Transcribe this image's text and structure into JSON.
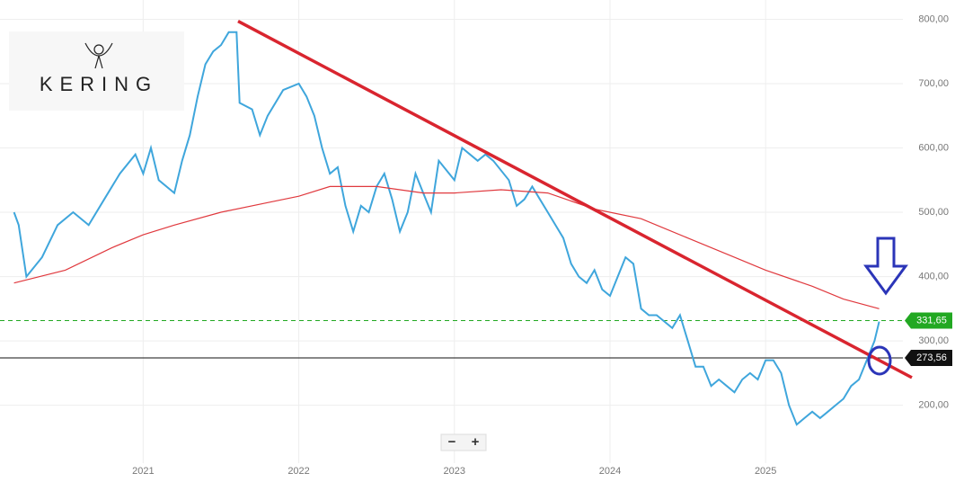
{
  "chart_data": {
    "type": "line",
    "logo": "KERING",
    "zoom_controls": [
      "−",
      "+"
    ],
    "xlim": [
      2020.08,
      2025.94
    ],
    "xticks": [
      2021,
      2022,
      2023,
      2024,
      2025
    ],
    "ylim": [
      110,
      830
    ],
    "yticks": [
      {
        "value": 200,
        "label": "200,00"
      },
      {
        "value": 300,
        "label": "300,00"
      },
      {
        "value": 400,
        "label": "400,00"
      },
      {
        "value": 500,
        "label": "500,00"
      },
      {
        "value": 600,
        "label": "600,00"
      },
      {
        "value": 700,
        "label": "700,00"
      },
      {
        "value": 800,
        "label": "800,00"
      }
    ],
    "grid": true,
    "series": [
      {
        "color": "#3fa6dc",
        "x": [
          2020.17,
          2020.2,
          2020.25,
          2020.35,
          2020.45,
          2020.55,
          2020.65,
          2020.75,
          2020.85,
          2020.95,
          2021.0,
          2021.05,
          2021.1,
          2021.2,
          2021.25,
          2021.3,
          2021.35,
          2021.4,
          2021.45,
          2021.5,
          2021.55,
          2021.6,
          2021.62,
          2021.7,
          2021.75,
          2021.8,
          2021.9,
          2022.0,
          2022.05,
          2022.1,
          2022.15,
          2022.2,
          2022.25,
          2022.3,
          2022.35,
          2022.4,
          2022.45,
          2022.5,
          2022.55,
          2022.6,
          2022.65,
          2022.7,
          2022.75,
          2022.8,
          2022.85,
          2022.9,
          2023.0,
          2023.05,
          2023.1,
          2023.15,
          2023.2,
          2023.25,
          2023.35,
          2023.4,
          2023.45,
          2023.5,
          2023.55,
          2023.6,
          2023.7,
          2023.75,
          2023.8,
          2023.85,
          2023.9,
          2023.95,
          2024.0,
          2024.05,
          2024.1,
          2024.15,
          2024.2,
          2024.25,
          2024.3,
          2024.35,
          2024.4,
          2024.45,
          2024.5,
          2024.55,
          2024.6,
          2024.65,
          2024.7,
          2024.75,
          2024.8,
          2024.85,
          2024.9,
          2024.95,
          2025.0,
          2025.05,
          2025.1,
          2025.15,
          2025.2,
          2025.25,
          2025.3,
          2025.35,
          2025.4,
          2025.45,
          2025.5,
          2025.55,
          2025.6,
          2025.65,
          2025.7,
          2025.73
        ],
        "values": [
          500,
          480,
          400,
          430,
          480,
          500,
          480,
          520,
          560,
          590,
          560,
          600,
          550,
          530,
          580,
          620,
          680,
          730,
          750,
          760,
          780,
          780,
          670,
          660,
          620,
          650,
          690,
          700,
          680,
          650,
          600,
          560,
          570,
          510,
          470,
          510,
          500,
          540,
          560,
          520,
          470,
          500,
          560,
          530,
          500,
          580,
          550,
          600,
          590,
          580,
          590,
          580,
          550,
          510,
          520,
          540,
          520,
          500,
          460,
          420,
          400,
          390,
          410,
          380,
          370,
          400,
          430,
          420,
          350,
          340,
          340,
          330,
          320,
          340,
          300,
          260,
          260,
          230,
          240,
          230,
          220,
          240,
          250,
          240,
          270,
          270,
          250,
          200,
          170,
          180,
          190,
          180,
          190,
          200,
          210,
          230,
          240,
          270,
          300,
          330
        ]
      },
      {
        "color": "#e0393e",
        "x": [
          2020.17,
          2020.5,
          2020.8,
          2021.0,
          2021.2,
          2021.5,
          2021.8,
          2022.0,
          2022.2,
          2022.5,
          2022.8,
          2023.0,
          2023.3,
          2023.6,
          2023.9,
          2024.2,
          2024.5,
          2024.8,
          2025.0,
          2025.3,
          2025.5,
          2025.73
        ],
        "values": [
          390,
          410,
          445,
          465,
          480,
          500,
          515,
          525,
          540,
          540,
          530,
          530,
          535,
          530,
          505,
          490,
          460,
          430,
          410,
          385,
          365,
          350
        ]
      }
    ],
    "trendline": {
      "x": [
        2021.61,
        2025.94
      ],
      "values": [
        797,
        243
      ],
      "color": "#d9252f"
    },
    "hlines": [
      {
        "value": 331.65,
        "label": "331,65",
        "color": "#22a822"
      },
      {
        "value": 273.56,
        "label": "273,56",
        "color": "#111111"
      }
    ]
  }
}
